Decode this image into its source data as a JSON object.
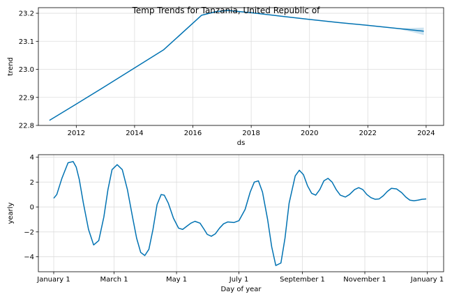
{
  "title": "Temp Trends for Tanzania, United Republic of",
  "colors": {
    "line": "#0072B2",
    "band": "#0072B2",
    "grid": "#dddddd",
    "axis": "#000000",
    "background": "#ffffff"
  },
  "chart_data": [
    {
      "type": "line",
      "xlabel": "ds",
      "ylabel": "trend",
      "xlim": [
        2010.7,
        2024.6
      ],
      "ylim": [
        22.8,
        23.22
      ],
      "xticks": [
        2012,
        2014,
        2016,
        2018,
        2020,
        2022,
        2024
      ],
      "xtick_labels": [
        "2012",
        "2014",
        "2016",
        "2018",
        "2020",
        "2022",
        "2024"
      ],
      "yticks": [
        22.8,
        22.9,
        23.0,
        23.1,
        23.2
      ],
      "ytick_labels": [
        "22.8",
        "22.9",
        "23.0",
        "23.1",
        "23.2"
      ],
      "grid": true,
      "series": [
        {
          "x": [
            2011.08,
            2012,
            2013,
            2014,
            2015,
            2016.3,
            2016.8,
            2017.2,
            2018,
            2019,
            2020,
            2021,
            2022,
            2023,
            2023.92
          ],
          "y": [
            22.818,
            22.876,
            22.94,
            23.005,
            23.07,
            23.193,
            23.206,
            23.21,
            23.202,
            23.19,
            23.178,
            23.167,
            23.157,
            23.146,
            23.136
          ]
        }
      ],
      "uncertainty_band": {
        "x": [
          2023.0,
          2023.3,
          2023.6,
          2023.92
        ],
        "lower": [
          23.146,
          23.138,
          23.131,
          23.122
        ],
        "upper": [
          23.146,
          23.147,
          23.148,
          23.149
        ]
      }
    },
    {
      "type": "line",
      "xlabel": "Day of year",
      "ylabel": "yearly",
      "xlim": [
        -15,
        381
      ],
      "ylim": [
        -5.2,
        4.2
      ],
      "xticks": [
        0,
        59,
        120,
        181,
        243,
        304,
        365
      ],
      "xtick_labels": [
        "January 1",
        "March 1",
        "May 1",
        "July 1",
        "September 1",
        "November 1",
        "January 1"
      ],
      "yticks": [
        -4,
        -2,
        0,
        2,
        4
      ],
      "ytick_labels": [
        "−4",
        "−2",
        "0",
        "2",
        "4"
      ],
      "grid": true,
      "series": [
        {
          "x": [
            0,
            3,
            8,
            14,
            19,
            22,
            25,
            29,
            34,
            39,
            44,
            49,
            53,
            57,
            62,
            67,
            72,
            77,
            81,
            85,
            89,
            93,
            97,
            101,
            105,
            108,
            112,
            117,
            122,
            126,
            130,
            134,
            138,
            143,
            147,
            150,
            154,
            158,
            162,
            166,
            170,
            176,
            181,
            187,
            192,
            196,
            200,
            204,
            209,
            213,
            217,
            222,
            226,
            230,
            236,
            240,
            244,
            248,
            252,
            256,
            260,
            264,
            268,
            272,
            276,
            280,
            285,
            289,
            294,
            298,
            302,
            306,
            310,
            314,
            318,
            322,
            326,
            330,
            335,
            340,
            344,
            348,
            352,
            356,
            360,
            364
          ],
          "y": [
            0.7,
            1.0,
            2.3,
            3.55,
            3.65,
            3.2,
            2.2,
            0.3,
            -1.8,
            -3.05,
            -2.7,
            -0.8,
            1.4,
            3.0,
            3.4,
            3.0,
            1.4,
            -0.8,
            -2.5,
            -3.65,
            -3.9,
            -3.4,
            -1.8,
            0.2,
            1.0,
            0.95,
            0.3,
            -0.9,
            -1.7,
            -1.8,
            -1.55,
            -1.3,
            -1.15,
            -1.3,
            -1.8,
            -2.2,
            -2.35,
            -2.15,
            -1.7,
            -1.35,
            -1.2,
            -1.25,
            -1.1,
            -0.2,
            1.2,
            2.0,
            2.1,
            1.2,
            -1.0,
            -3.2,
            -4.7,
            -4.5,
            -2.5,
            0.3,
            2.5,
            2.95,
            2.6,
            1.7,
            1.1,
            0.95,
            1.4,
            2.1,
            2.3,
            2.0,
            1.4,
            0.95,
            0.8,
            1.0,
            1.4,
            1.55,
            1.4,
            1.0,
            0.75,
            0.62,
            0.65,
            0.9,
            1.25,
            1.5,
            1.45,
            1.15,
            0.8,
            0.55,
            0.5,
            0.55,
            0.62,
            0.65
          ]
        }
      ]
    }
  ]
}
